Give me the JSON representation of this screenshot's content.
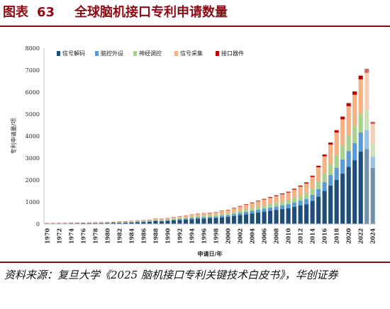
{
  "figure": {
    "label": "图表",
    "number": "63",
    "title": "全球脑机接口专利申请数量"
  },
  "source_text": "资料来源：复旦大学《2025 脑机接口专利关键技术白皮书》，华创证券",
  "chart_data": {
    "type": "bar",
    "stacked": true,
    "xlabel": "申请日/年",
    "ylabel": "专利申请量/项",
    "ylim": [
      0,
      8000
    ],
    "yticks": [
      0,
      1000,
      2000,
      3000,
      4000,
      5000,
      6000,
      7000,
      8000
    ],
    "grid": false,
    "legend_position": "top-left",
    "xtick_labels": [
      "1970",
      "1972",
      "1974",
      "1976",
      "1978",
      "1980",
      "1982",
      "1984",
      "1986",
      "1988",
      "1990",
      "1992",
      "1994",
      "1996",
      "1998",
      "2000",
      "2002",
      "2004",
      "2006",
      "2008",
      "2010",
      "2012",
      "2014",
      "2016",
      "2018",
      "2020",
      "2022",
      "2024"
    ],
    "categories": [
      "1970",
      "1971",
      "1972",
      "1973",
      "1974",
      "1975",
      "1976",
      "1977",
      "1978",
      "1979",
      "1980",
      "1981",
      "1982",
      "1983",
      "1984",
      "1985",
      "1986",
      "1987",
      "1988",
      "1989",
      "1990",
      "1991",
      "1992",
      "1993",
      "1994",
      "1995",
      "1996",
      "1997",
      "1998",
      "1999",
      "2000",
      "2001",
      "2002",
      "2003",
      "2004",
      "2005",
      "2006",
      "2007",
      "2008",
      "2009",
      "2010",
      "2011",
      "2012",
      "2013",
      "2014",
      "2015",
      "2016",
      "2017",
      "2018",
      "2019",
      "2020",
      "2021",
      "2022",
      "2023",
      "2024"
    ],
    "series": [
      {
        "name": "信号解码",
        "color": "#1f4e79",
        "values": [
          20,
          22,
          24,
          26,
          28,
          30,
          32,
          35,
          38,
          40,
          45,
          50,
          55,
          60,
          70,
          80,
          90,
          100,
          130,
          120,
          140,
          160,
          180,
          200,
          220,
          240,
          250,
          260,
          270,
          300,
          320,
          360,
          400,
          440,
          480,
          520,
          560,
          600,
          640,
          680,
          720,
          780,
          840,
          900,
          1050,
          1250,
          1500,
          1750,
          2000,
          2300,
          2600,
          2900,
          3300,
          3400,
          2550
        ]
      },
      {
        "name": "脑控外设",
        "color": "#5b9bd5",
        "values": [
          5,
          5,
          6,
          6,
          7,
          7,
          8,
          8,
          9,
          10,
          10,
          12,
          14,
          16,
          18,
          20,
          22,
          24,
          30,
          30,
          35,
          40,
          45,
          50,
          55,
          60,
          62,
          64,
          66,
          75,
          80,
          90,
          100,
          110,
          120,
          130,
          140,
          150,
          160,
          170,
          180,
          200,
          220,
          240,
          280,
          340,
          400,
          480,
          560,
          640,
          720,
          780,
          860,
          880,
          500
        ]
      },
      {
        "name": "神经调控",
        "color": "#a9d18e",
        "values": [
          5,
          5,
          6,
          6,
          7,
          7,
          8,
          8,
          9,
          10,
          10,
          12,
          14,
          16,
          18,
          20,
          22,
          24,
          30,
          30,
          35,
          40,
          45,
          50,
          55,
          60,
          62,
          64,
          66,
          75,
          80,
          90,
          100,
          110,
          120,
          130,
          140,
          150,
          160,
          170,
          180,
          200,
          220,
          240,
          280,
          340,
          400,
          480,
          560,
          640,
          720,
          780,
          860,
          900,
          600
        ]
      },
      {
        "name": "信号采集",
        "color": "#f4b183",
        "values": [
          8,
          9,
          10,
          10,
          11,
          12,
          13,
          14,
          15,
          16,
          18,
          20,
          22,
          24,
          28,
          32,
          36,
          40,
          50,
          50,
          55,
          62,
          70,
          80,
          90,
          100,
          105,
          110,
          115,
          135,
          150,
          170,
          190,
          210,
          230,
          250,
          270,
          290,
          310,
          330,
          350,
          380,
          420,
          460,
          530,
          650,
          780,
          900,
          1040,
          1180,
          1320,
          1420,
          1560,
          1700,
          900
        ]
      },
      {
        "name": "接口器件",
        "color": "#c00000",
        "values": [
          2,
          2,
          2,
          2,
          2,
          2,
          3,
          3,
          3,
          3,
          3,
          3,
          4,
          4,
          4,
          5,
          5,
          5,
          6,
          6,
          7,
          8,
          9,
          10,
          11,
          12,
          13,
          14,
          15,
          17,
          18,
          20,
          22,
          24,
          26,
          28,
          30,
          32,
          34,
          36,
          38,
          42,
          46,
          50,
          58,
          70,
          82,
          96,
          110,
          126,
          140,
          150,
          170,
          180,
          100
        ]
      }
    ],
    "segment_colors_light_last_years": {
      "2023": true,
      "2024": true
    }
  }
}
